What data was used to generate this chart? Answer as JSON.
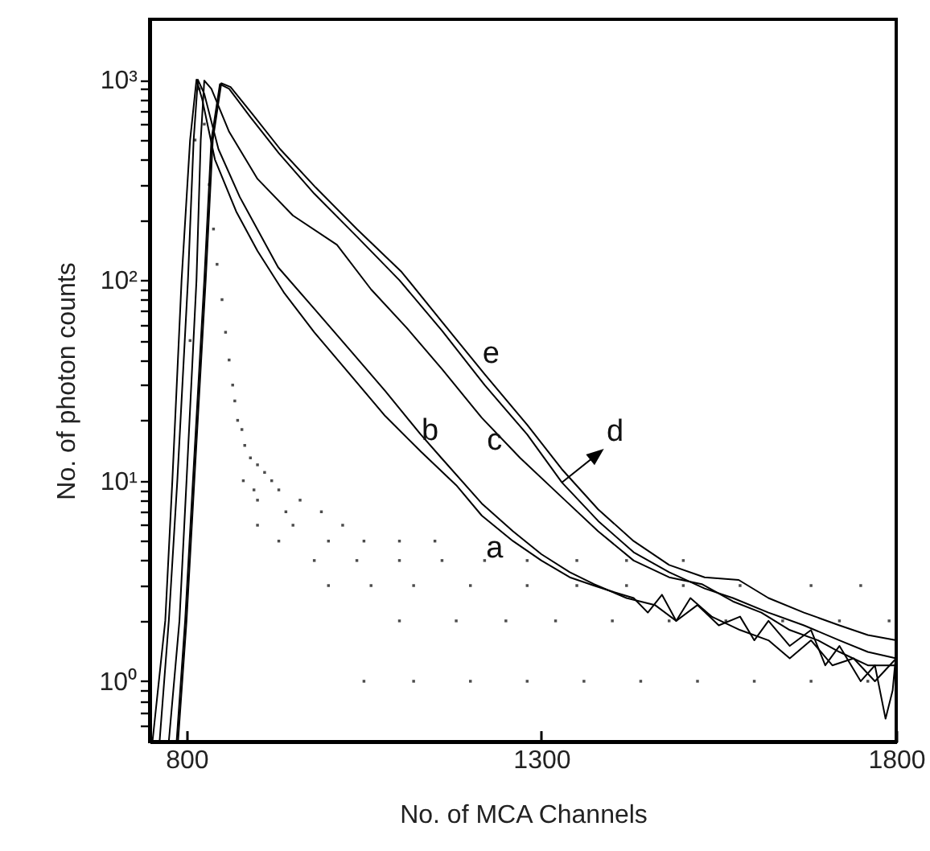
{
  "chart_data": {
    "type": "line",
    "xlabel": "No. of  MCA Channels",
    "ylabel": "No. of photon counts",
    "log": "y",
    "grid": false,
    "marker": "none",
    "line_style": "solid",
    "xlim": [
      748,
      1800
    ],
    "xticks": [
      800,
      1300,
      1800
    ],
    "ylim": [
      0.5,
      2000
    ],
    "yticks": [
      {
        "value": 0.6,
        "label": null
      },
      {
        "value": 0.7,
        "label": null
      },
      {
        "value": 0.8,
        "label": null
      },
      {
        "value": 0.9,
        "label": null
      },
      {
        "value": 1,
        "label": "10⁰"
      },
      {
        "value": 2,
        "label": null
      },
      {
        "value": 3,
        "label": null
      },
      {
        "value": 4,
        "label": null
      },
      {
        "value": 5,
        "label": null
      },
      {
        "value": 6,
        "label": null
      },
      {
        "value": 7,
        "label": null
      },
      {
        "value": 8,
        "label": null
      },
      {
        "value": 9,
        "label": null
      },
      {
        "value": 10,
        "label": "10¹"
      },
      {
        "value": 20,
        "label": null
      },
      {
        "value": 30,
        "label": null
      },
      {
        "value": 40,
        "label": null
      },
      {
        "value": 50,
        "label": null
      },
      {
        "value": 60,
        "label": null
      },
      {
        "value": 70,
        "label": null
      },
      {
        "value": 80,
        "label": null
      },
      {
        "value": 90,
        "label": null
      },
      {
        "value": 100,
        "label": "10²"
      },
      {
        "value": 200,
        "label": null
      },
      {
        "value": 300,
        "label": null
      },
      {
        "value": 400,
        "label": null
      },
      {
        "value": 500,
        "label": null
      },
      {
        "value": 600,
        "label": null
      },
      {
        "value": 700,
        "label": null
      },
      {
        "value": 800,
        "label": null
      },
      {
        "value": 900,
        "label": null
      },
      {
        "value": 1000,
        "label": "10³"
      }
    ],
    "series": [
      {
        "color": "#000000",
        "x": [
          752,
          770,
          780,
          793,
          805,
          814,
          822,
          840,
          870,
          900,
          938,
          980,
          1030,
          1080,
          1130,
          1180,
          1216,
          1260,
          1300,
          1340,
          1374,
          1400,
          1430,
          1450,
          1470,
          1490,
          1520,
          1550,
          1580,
          1600,
          1620,
          1650,
          1680,
          1700,
          1720,
          1750,
          1770,
          1785,
          1795,
          1800
        ],
        "values": [
          0.5,
          2,
          10,
          100,
          500,
          1000,
          800,
          400,
          220,
          140,
          86,
          55,
          34,
          21,
          14,
          9.5,
          6.7,
          5,
          4,
          3.3,
          3,
          2.8,
          2.6,
          2.2,
          2.7,
          2,
          2.4,
          1.9,
          2.1,
          1.6,
          2,
          1.5,
          1.8,
          1.2,
          1.5,
          1,
          1.2,
          0.65,
          0.9,
          1.4
        ]
      },
      {
        "color": "#000000",
        "x": [
          762,
          775,
          787,
          802,
          810,
          816,
          825,
          845,
          875,
          929,
          980,
          1030,
          1080,
          1130,
          1159,
          1216,
          1260,
          1300,
          1340,
          1374,
          1420,
          1460,
          1490,
          1510,
          1540,
          1580,
          1620,
          1650,
          1680,
          1710,
          1740,
          1770,
          1800
        ],
        "values": [
          0.5,
          2,
          10,
          100,
          500,
          1000,
          850,
          450,
          260,
          116,
          72,
          45,
          28,
          17,
          13,
          7.7,
          5.6,
          4.3,
          3.5,
          3.05,
          2.6,
          2.4,
          2,
          2.6,
          2.1,
          1.8,
          1.6,
          1.3,
          1.6,
          1.2,
          1.3,
          1,
          1.3
        ]
      },
      {
        "color": "#000000",
        "x": [
          775,
          790,
          800,
          814,
          820,
          825,
          835,
          860,
          900,
          950,
          1012,
          1060,
          1110,
          1160,
          1216,
          1270,
          1330,
          1380,
          1430,
          1480,
          1526,
          1570,
          1610,
          1650,
          1690,
          1720,
          1760,
          1800
        ],
        "values": [
          0.5,
          2,
          10,
          100,
          500,
          990,
          900,
          550,
          320,
          210,
          150,
          90,
          58,
          36,
          20.6,
          13,
          8.2,
          5.6,
          4,
          3.3,
          3.05,
          2.5,
          2.2,
          1.8,
          1.6,
          1.4,
          1.2,
          1.2
        ]
      },
      {
        "color": "#000000",
        "x": [
          786,
          798,
          809,
          825,
          835,
          847,
          860,
          890,
          930,
          980,
          1040,
          1100,
          1160,
          1220,
          1280,
          1329,
          1380,
          1430,
          1480,
          1530,
          1570,
          1620,
          1670,
          1720,
          1760,
          1800
        ],
        "values": [
          0.5,
          2,
          10,
          100,
          500,
          950,
          900,
          650,
          430,
          270,
          165,
          100,
          56,
          30,
          17,
          9.8,
          6.3,
          4.4,
          3.5,
          2.9,
          2.6,
          2.2,
          1.9,
          1.6,
          1.4,
          1.3
        ]
      },
      {
        "color": "#000000",
        "x": [
          788,
          800,
          811,
          827,
          837,
          849,
          862,
          892,
          932,
          982,
          1040,
          1103,
          1160,
          1220,
          1280,
          1329,
          1380,
          1430,
          1480,
          1530,
          1578,
          1620,
          1670,
          1720,
          1760,
          1800
        ],
        "values": [
          0.5,
          2,
          10,
          100,
          500,
          960,
          920,
          680,
          450,
          290,
          180,
          110,
          62,
          34,
          19,
          11.4,
          7.2,
          5,
          3.8,
          3.3,
          3.2,
          2.6,
          2.2,
          1.9,
          1.7,
          1.6
        ]
      },
      {
        "type": "scatter",
        "color": "#000000",
        "marker": "square",
        "x": [
          805,
          812,
          818,
          825,
          832,
          838,
          843,
          850,
          855,
          860,
          865,
          868,
          872,
          878,
          882,
          890,
          900,
          910,
          920,
          880,
          895,
          930,
          960,
          990,
          900,
          940,
          1020,
          900,
          950,
          1000,
          1050,
          1100,
          1150,
          930,
          980,
          1040,
          1100,
          1160,
          1220,
          1280,
          1350,
          1420,
          1500,
          1000,
          1060,
          1120,
          1200,
          1280,
          1350,
          1420,
          1500,
          1580,
          1680,
          1750,
          1100,
          1180,
          1250,
          1320,
          1400,
          1480,
          1560,
          1640,
          1720,
          1790,
          1050,
          1120,
          1200,
          1280,
          1360,
          1440,
          1520,
          1600,
          1680,
          1760
        ],
        "values": [
          50,
          500,
          900,
          600,
          300,
          180,
          120,
          80,
          55,
          40,
          30,
          25,
          20,
          18,
          15,
          13,
          12,
          11,
          10,
          10,
          9,
          9,
          8,
          7,
          8,
          7,
          6,
          6,
          6,
          5,
          5,
          5,
          5,
          5,
          4,
          4,
          4,
          4,
          4,
          4,
          4,
          4,
          4,
          3,
          3,
          3,
          3,
          3,
          3,
          3,
          3,
          3,
          3,
          3,
          2,
          2,
          2,
          2,
          2,
          2,
          2,
          2,
          2,
          2,
          1,
          1,
          1,
          1,
          1,
          1,
          1,
          1,
          1,
          1
        ]
      }
    ],
    "annotations": [
      {
        "text": "e",
        "x": 1220,
        "y": 34
      },
      {
        "text": "c",
        "x": 1216,
        "y": 20.6
      },
      {
        "text": "b",
        "x": 1159,
        "y": 13
      },
      {
        "text": "a",
        "x": 1216,
        "y": 6.7
      },
      {
        "text": "d",
        "x": 1329,
        "y": 9.8
      }
    ]
  }
}
